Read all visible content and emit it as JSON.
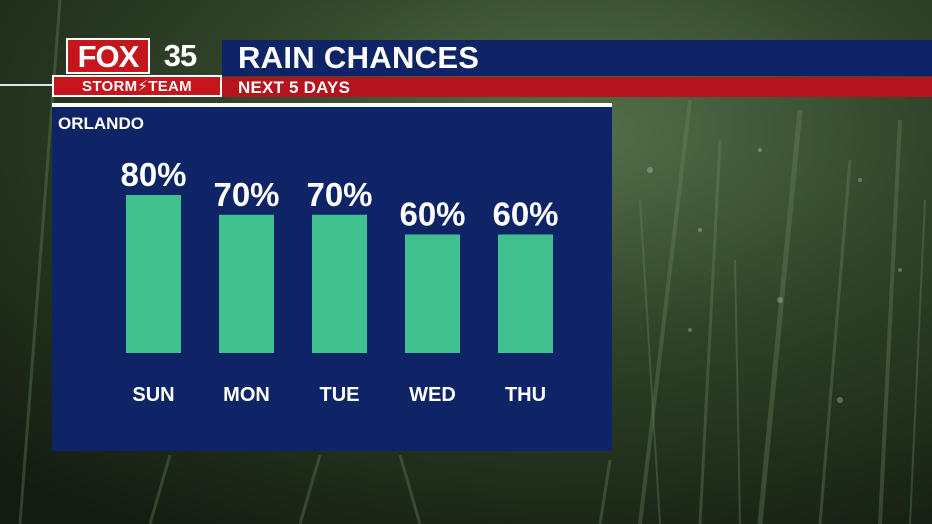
{
  "brand": {
    "logo_fox": "FOX",
    "logo_number": "35",
    "logo_team": "STORM⚡TEAM"
  },
  "header": {
    "title": "RAIN CHANCES",
    "subtitle": "NEXT 5 DAYS"
  },
  "panel": {
    "location": "ORLANDO"
  },
  "colors": {
    "header_blue": "#0f2466",
    "header_red": "#b5141c",
    "bar_green": "#41c090",
    "text_white": "#ffffff"
  },
  "chart_data": {
    "type": "bar",
    "title": "RAIN CHANCES",
    "subtitle": "NEXT 5 DAYS",
    "location": "ORLANDO",
    "categories": [
      "SUN",
      "MON",
      "TUE",
      "WED",
      "THU"
    ],
    "values": [
      80,
      70,
      70,
      60,
      60
    ],
    "data_labels": [
      "80%",
      "70%",
      "70%",
      "60%",
      "60%"
    ],
    "unit": "%",
    "ylim": [
      0,
      100
    ],
    "grid": false,
    "legend": false
  }
}
